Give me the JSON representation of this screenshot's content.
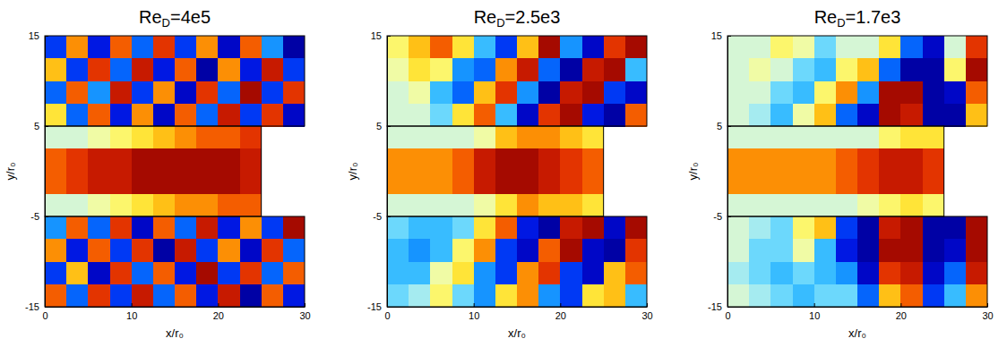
{
  "chart_data": [
    {
      "type": "heatmap",
      "title": "ReD=4e5",
      "x_label": "x/r₀",
      "y_label": "y/r₀",
      "xlim": [
        0,
        30
      ],
      "ylim": [
        -15,
        15
      ],
      "xticks": [
        0,
        10,
        20,
        30
      ],
      "yticks": [
        -15,
        -5,
        5,
        15
      ],
      "zlim": [
        -1,
        1
      ],
      "x_edges": [
        0,
        2.5,
        5,
        7.5,
        10,
        12.5,
        15,
        17.5,
        20,
        22.5,
        25,
        27.5,
        30
      ],
      "y_edges": [
        15,
        12.5,
        10,
        7.5,
        5,
        2.5,
        0,
        -2.5,
        -5,
        -7.5,
        -10,
        -12.5,
        -15
      ],
      "cells": [
        [
          -0.6,
          0.5,
          -0.7,
          0.6,
          -0.5,
          0.7,
          -0.6,
          0.5,
          -0.8,
          0.6,
          -0.4,
          -0.9
        ],
        [
          0.4,
          -0.6,
          0.7,
          -0.5,
          0.8,
          -0.7,
          0.6,
          -0.9,
          0.5,
          -0.7,
          0.8,
          -0.6
        ],
        [
          -0.5,
          0.6,
          -0.4,
          0.8,
          -0.6,
          0.5,
          -0.8,
          0.7,
          -0.5,
          0.9,
          -0.6,
          0.7
        ],
        [
          0.3,
          -0.5,
          0.6,
          -0.7,
          0.5,
          -0.8,
          0.6,
          -0.5,
          0.8,
          -0.6,
          0.7,
          -0.8
        ],
        [
          0,
          0,
          0.1,
          0.2,
          0.3,
          0.4,
          0.5,
          0.6,
          0.6,
          0.7,
          null,
          null
        ],
        [
          0.6,
          0.7,
          0.8,
          0.8,
          0.9,
          0.9,
          0.9,
          0.9,
          0.9,
          0.8,
          null,
          null
        ],
        [
          0.6,
          0.7,
          0.8,
          0.8,
          0.9,
          0.9,
          0.9,
          0.9,
          0.9,
          0.8,
          null,
          null
        ],
        [
          0,
          0,
          0.1,
          0.2,
          0.3,
          0.4,
          0.5,
          0.5,
          0.6,
          0.6,
          null,
          null
        ],
        [
          -0.4,
          0.6,
          -0.5,
          0.7,
          -0.8,
          0.6,
          -0.5,
          0.8,
          -0.7,
          0.5,
          -0.6,
          0.9
        ],
        [
          0.5,
          -0.7,
          0.6,
          -0.6,
          0.7,
          -0.9,
          0.8,
          -0.6,
          0.5,
          -0.8,
          0.7,
          -0.5
        ],
        [
          -0.6,
          0.4,
          -0.8,
          0.7,
          -0.5,
          0.6,
          -0.7,
          0.9,
          -0.6,
          0.7,
          -0.5,
          0.6
        ],
        [
          0.6,
          -0.5,
          0.7,
          -0.6,
          0.8,
          -0.5,
          0.6,
          -0.7,
          0.8,
          -0.9,
          0.6,
          -0.7
        ]
      ]
    },
    {
      "type": "heatmap",
      "title": "ReD=2.5e3",
      "x_label": "x/r₀",
      "y_label": "y/r₀",
      "xlim": [
        0,
        30
      ],
      "ylim": [
        -15,
        15
      ],
      "xticks": [
        0,
        10,
        20,
        30
      ],
      "yticks": [
        -15,
        -5,
        5,
        15
      ],
      "zlim": [
        -1,
        1
      ],
      "x_edges": [
        0,
        2.5,
        5,
        7.5,
        10,
        12.5,
        15,
        17.5,
        20,
        22.5,
        25,
        27.5,
        30
      ],
      "y_edges": [
        15,
        12.5,
        10,
        7.5,
        5,
        2.5,
        0,
        -2.5,
        -5,
        -7.5,
        -10,
        -12.5,
        -15
      ],
      "cells": [
        [
          0.2,
          0.4,
          0.6,
          0.3,
          -0.3,
          -0.6,
          0.4,
          0.9,
          -0.4,
          -0.8,
          0.7,
          0.9
        ],
        [
          0.1,
          0.3,
          0.2,
          -0.4,
          -0.5,
          0.5,
          0.8,
          -0.5,
          -0.9,
          0.8,
          0.9,
          -0.3
        ],
        [
          0,
          0.1,
          -0.3,
          -0.5,
          0.4,
          0.7,
          -0.4,
          -0.9,
          0.8,
          0.9,
          -0.6,
          -0.8
        ],
        [
          0,
          0,
          -0.2,
          0.3,
          0.6,
          -0.3,
          -0.8,
          0.7,
          0.9,
          -0.7,
          -0.9,
          0.6
        ],
        [
          0,
          0,
          0,
          0,
          0.1,
          0.4,
          0.5,
          0.5,
          0.4,
          0.3,
          null,
          null
        ],
        [
          0.5,
          0.5,
          0.5,
          0.6,
          0.8,
          0.9,
          0.9,
          0.8,
          0.7,
          0.6,
          null,
          null
        ],
        [
          0.5,
          0.5,
          0.5,
          0.6,
          0.8,
          0.9,
          0.9,
          0.8,
          0.7,
          0.6,
          null,
          null
        ],
        [
          0,
          0,
          0,
          0,
          0.1,
          0.3,
          0.5,
          0.4,
          0.4,
          0.3,
          null,
          null
        ],
        [
          -0.2,
          -0.3,
          -0.3,
          -0.2,
          0.3,
          0.6,
          -0.7,
          -0.9,
          0.8,
          0.9,
          -0.8,
          0.9
        ],
        [
          -0.3,
          -0.4,
          -0.3,
          0.2,
          0.5,
          -0.6,
          -0.8,
          0.6,
          0.9,
          -0.8,
          -0.9,
          0.7
        ],
        [
          -0.3,
          -0.3,
          0.1,
          0.3,
          -0.4,
          -0.6,
          0.5,
          0.7,
          -0.6,
          -0.8,
          0.4,
          0.6
        ],
        [
          -0.2,
          -0.1,
          0.2,
          -0.2,
          -0.4,
          0.3,
          0.5,
          -0.4,
          -0.6,
          0.3,
          0.4,
          -0.3
        ]
      ]
    },
    {
      "type": "heatmap",
      "title": "ReD=1.7e3",
      "x_label": "x/r₀",
      "y_label": "y/r₀",
      "xlim": [
        0,
        30
      ],
      "ylim": [
        -15,
        15
      ],
      "xticks": [
        0,
        10,
        20,
        30
      ],
      "yticks": [
        -15,
        -5,
        5,
        15
      ],
      "zlim": [
        -1,
        1
      ],
      "x_edges": [
        0,
        2.5,
        5,
        7.5,
        10,
        12.5,
        15,
        17.5,
        20,
        22.5,
        25,
        27.5,
        30
      ],
      "y_edges": [
        15,
        12.5,
        10,
        7.5,
        5,
        2.5,
        0,
        -2.5,
        -5,
        -7.5,
        -10,
        -12.5,
        -15
      ],
      "cells": [
        [
          0,
          0,
          0.2,
          0.1,
          -0.2,
          0,
          0,
          0.3,
          -0.5,
          -0.8,
          0,
          0.7
        ],
        [
          0,
          0.1,
          0,
          -0.2,
          -0.3,
          0.2,
          0.4,
          -0.5,
          -0.9,
          -0.9,
          0.2,
          0.9
        ],
        [
          0,
          0,
          -0.2,
          -0.3,
          0.2,
          0.5,
          -0.4,
          0.9,
          0.9,
          -0.9,
          -0.8,
          0.6
        ],
        [
          0,
          -0.1,
          -0.3,
          0.1,
          0.4,
          -0.5,
          -0.8,
          0.9,
          0.8,
          -0.9,
          -0.9,
          0.4
        ],
        [
          0,
          0,
          0,
          0,
          0,
          0,
          0,
          0.2,
          0.3,
          0.3,
          null,
          null
        ],
        [
          0.5,
          0.5,
          0.5,
          0.5,
          0.5,
          0.6,
          0.7,
          0.8,
          0.8,
          0.7,
          null,
          null
        ],
        [
          0.5,
          0.5,
          0.5,
          0.5,
          0.5,
          0.6,
          0.7,
          0.8,
          0.8,
          0.7,
          null,
          null
        ],
        [
          0,
          0,
          0,
          0,
          0,
          0,
          0.1,
          0.2,
          0.3,
          0.2,
          null,
          null
        ],
        [
          0,
          -0.1,
          -0.2,
          0.2,
          0.4,
          -0.6,
          -0.9,
          0.8,
          0.9,
          -0.9,
          -0.9,
          0.9
        ],
        [
          0,
          -0.2,
          -0.2,
          0.1,
          -0.3,
          -0.7,
          -0.9,
          0.9,
          0.9,
          -0.9,
          -0.8,
          0.9
        ],
        [
          -0.1,
          -0.2,
          -0.3,
          -0.2,
          -0.3,
          -0.4,
          -0.8,
          0.7,
          0.8,
          -0.8,
          -0.5,
          0.8
        ],
        [
          0,
          -0.1,
          -0.2,
          -0.3,
          -0.2,
          -0.2,
          -0.5,
          0.4,
          0.6,
          -0.6,
          -0.3,
          0.5
        ]
      ]
    }
  ]
}
